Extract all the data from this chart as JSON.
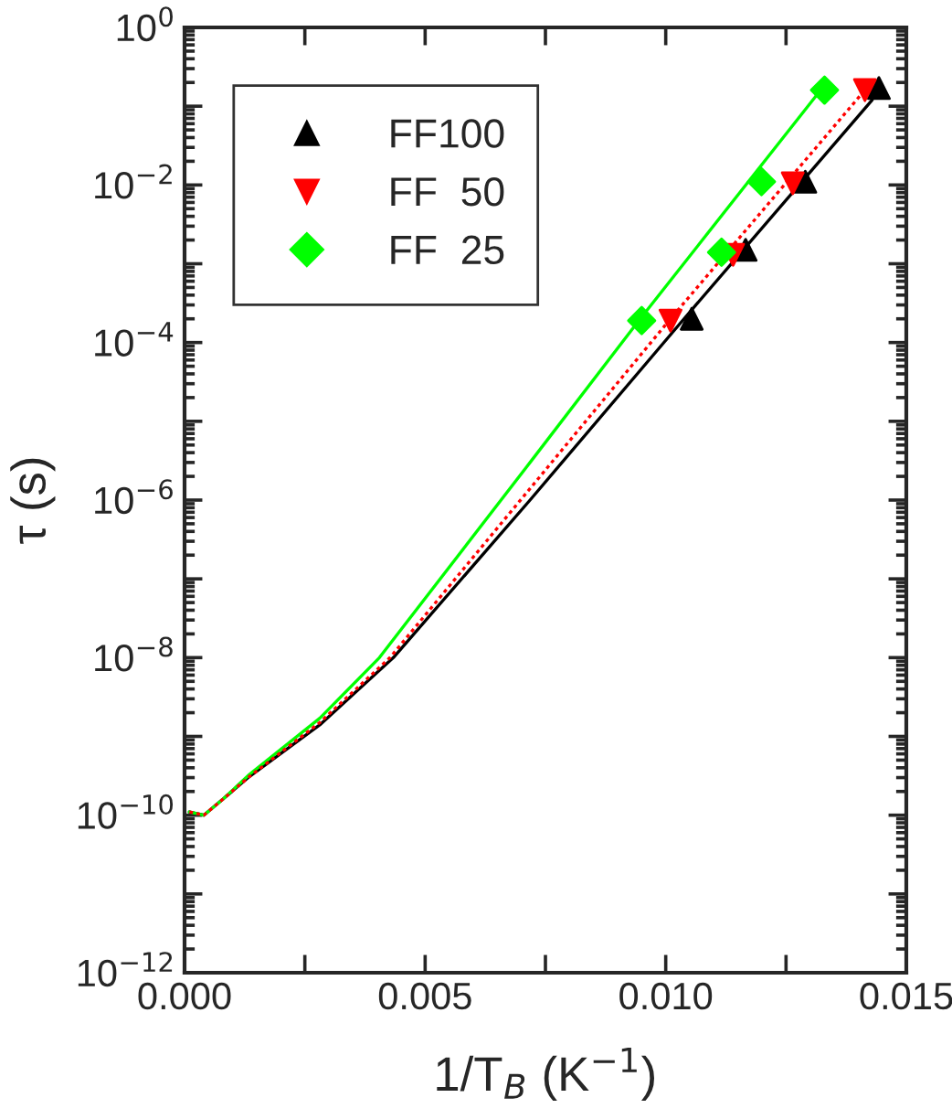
{
  "chart_data": {
    "type": "scatter",
    "xlabel": "1/T$_{B}$ (K$^{−1}$)",
    "ylabel": "τ (s)",
    "log": "y",
    "grid": false,
    "legend": "top left",
    "xlim": [
      0.0,
      0.015
    ],
    "xticks": [
      {
        "value": 0.0,
        "label": "0.000"
      },
      {
        "value": 0.0025,
        "label": null
      },
      {
        "value": 0.005,
        "label": "0.005"
      },
      {
        "value": 0.0075,
        "label": null
      },
      {
        "value": 0.01,
        "label": "0.010"
      },
      {
        "value": 0.0125,
        "label": null
      },
      {
        "value": 0.015,
        "label": "0.015"
      }
    ],
    "ylim": [
      1e-12,
      1
    ],
    "yticks": [
      {
        "value": 1e-12,
        "label": "10$^{−12}$"
      },
      {
        "value": 1e-11,
        "label": null
      },
      {
        "value": 1e-10,
        "label": "10$^{−10}$"
      },
      {
        "value": 1e-09,
        "label": null
      },
      {
        "value": 1e-08,
        "label": "10$^{−8}$"
      },
      {
        "value": 1e-07,
        "label": null
      },
      {
        "value": 1e-06,
        "label": "10$^{−6}$"
      },
      {
        "value": 1e-05,
        "label": null
      },
      {
        "value": 0.0001,
        "label": "10$^{−4}$"
      },
      {
        "value": 0.001,
        "label": null
      },
      {
        "value": 0.01,
        "label": "10$^{−2}$"
      },
      {
        "value": 0.1,
        "label": null
      },
      {
        "value": 1,
        "label": "10$^{0}$"
      }
    ],
    "series": [
      {
        "type": "line",
        "color": "#000000",
        "line_style": "solid",
        "marker": "none",
        "x": [
          0.0001,
          0.0004,
          0.0008,
          0.00135,
          0.00281,
          0.00434,
          0.00718,
          0.01038,
          0.01429
        ],
        "values": [
          1.1e-10,
          1e-10,
          1.6e-10,
          3.1e-10,
          1.4e-09,
          1e-08,
          1e-06,
          0.0002,
          0.12
        ]
      },
      {
        "type": "line",
        "color": "#ff0000",
        "line_style": "dotted",
        "marker": "none",
        "x": [
          0.0001,
          0.0004,
          0.0008,
          0.00135,
          0.00281,
          0.00427,
          0.00718,
          0.0101,
          0.0141
        ],
        "values": [
          1.1e-10,
          1e-10,
          1.6e-10,
          3.1e-10,
          1.5e-09,
          1e-08,
          1.4e-06,
          0.0002,
          0.15
        ]
      },
      {
        "type": "line",
        "color": "#00ff00",
        "line_style": "solid",
        "marker": "none",
        "x": [
          0.0001,
          0.0004,
          0.0008,
          0.00135,
          0.00281,
          0.00405,
          0.00718,
          0.00944,
          0.01322
        ],
        "values": [
          1.1e-10,
          1e-10,
          1.6e-10,
          3.3e-10,
          1.7e-09,
          1e-08,
          3e-06,
          0.00019,
          0.16
        ]
      },
      {
        "name": "FF100",
        "color": "#000000",
        "marker": "triangle",
        "x": [
          0.01443,
          0.0129,
          0.01166,
          0.01054
        ],
        "values": [
          0.17,
          0.011,
          0.0015,
          0.0002
        ]
      },
      {
        "name": "FF  50",
        "color": "#ff0000",
        "marker": "triangle_down",
        "x": [
          0.01414,
          0.01264,
          0.0114,
          0.0101
        ],
        "values": [
          0.16,
          0.0105,
          0.0013,
          0.00019
        ]
      },
      {
        "name": "FF  25",
        "color": "#00ff00",
        "marker": "diamond",
        "x": [
          0.0133,
          0.01199,
          0.01116,
          0.0095
        ],
        "values": [
          0.16,
          0.011,
          0.0014,
          0.00019
        ]
      }
    ]
  }
}
